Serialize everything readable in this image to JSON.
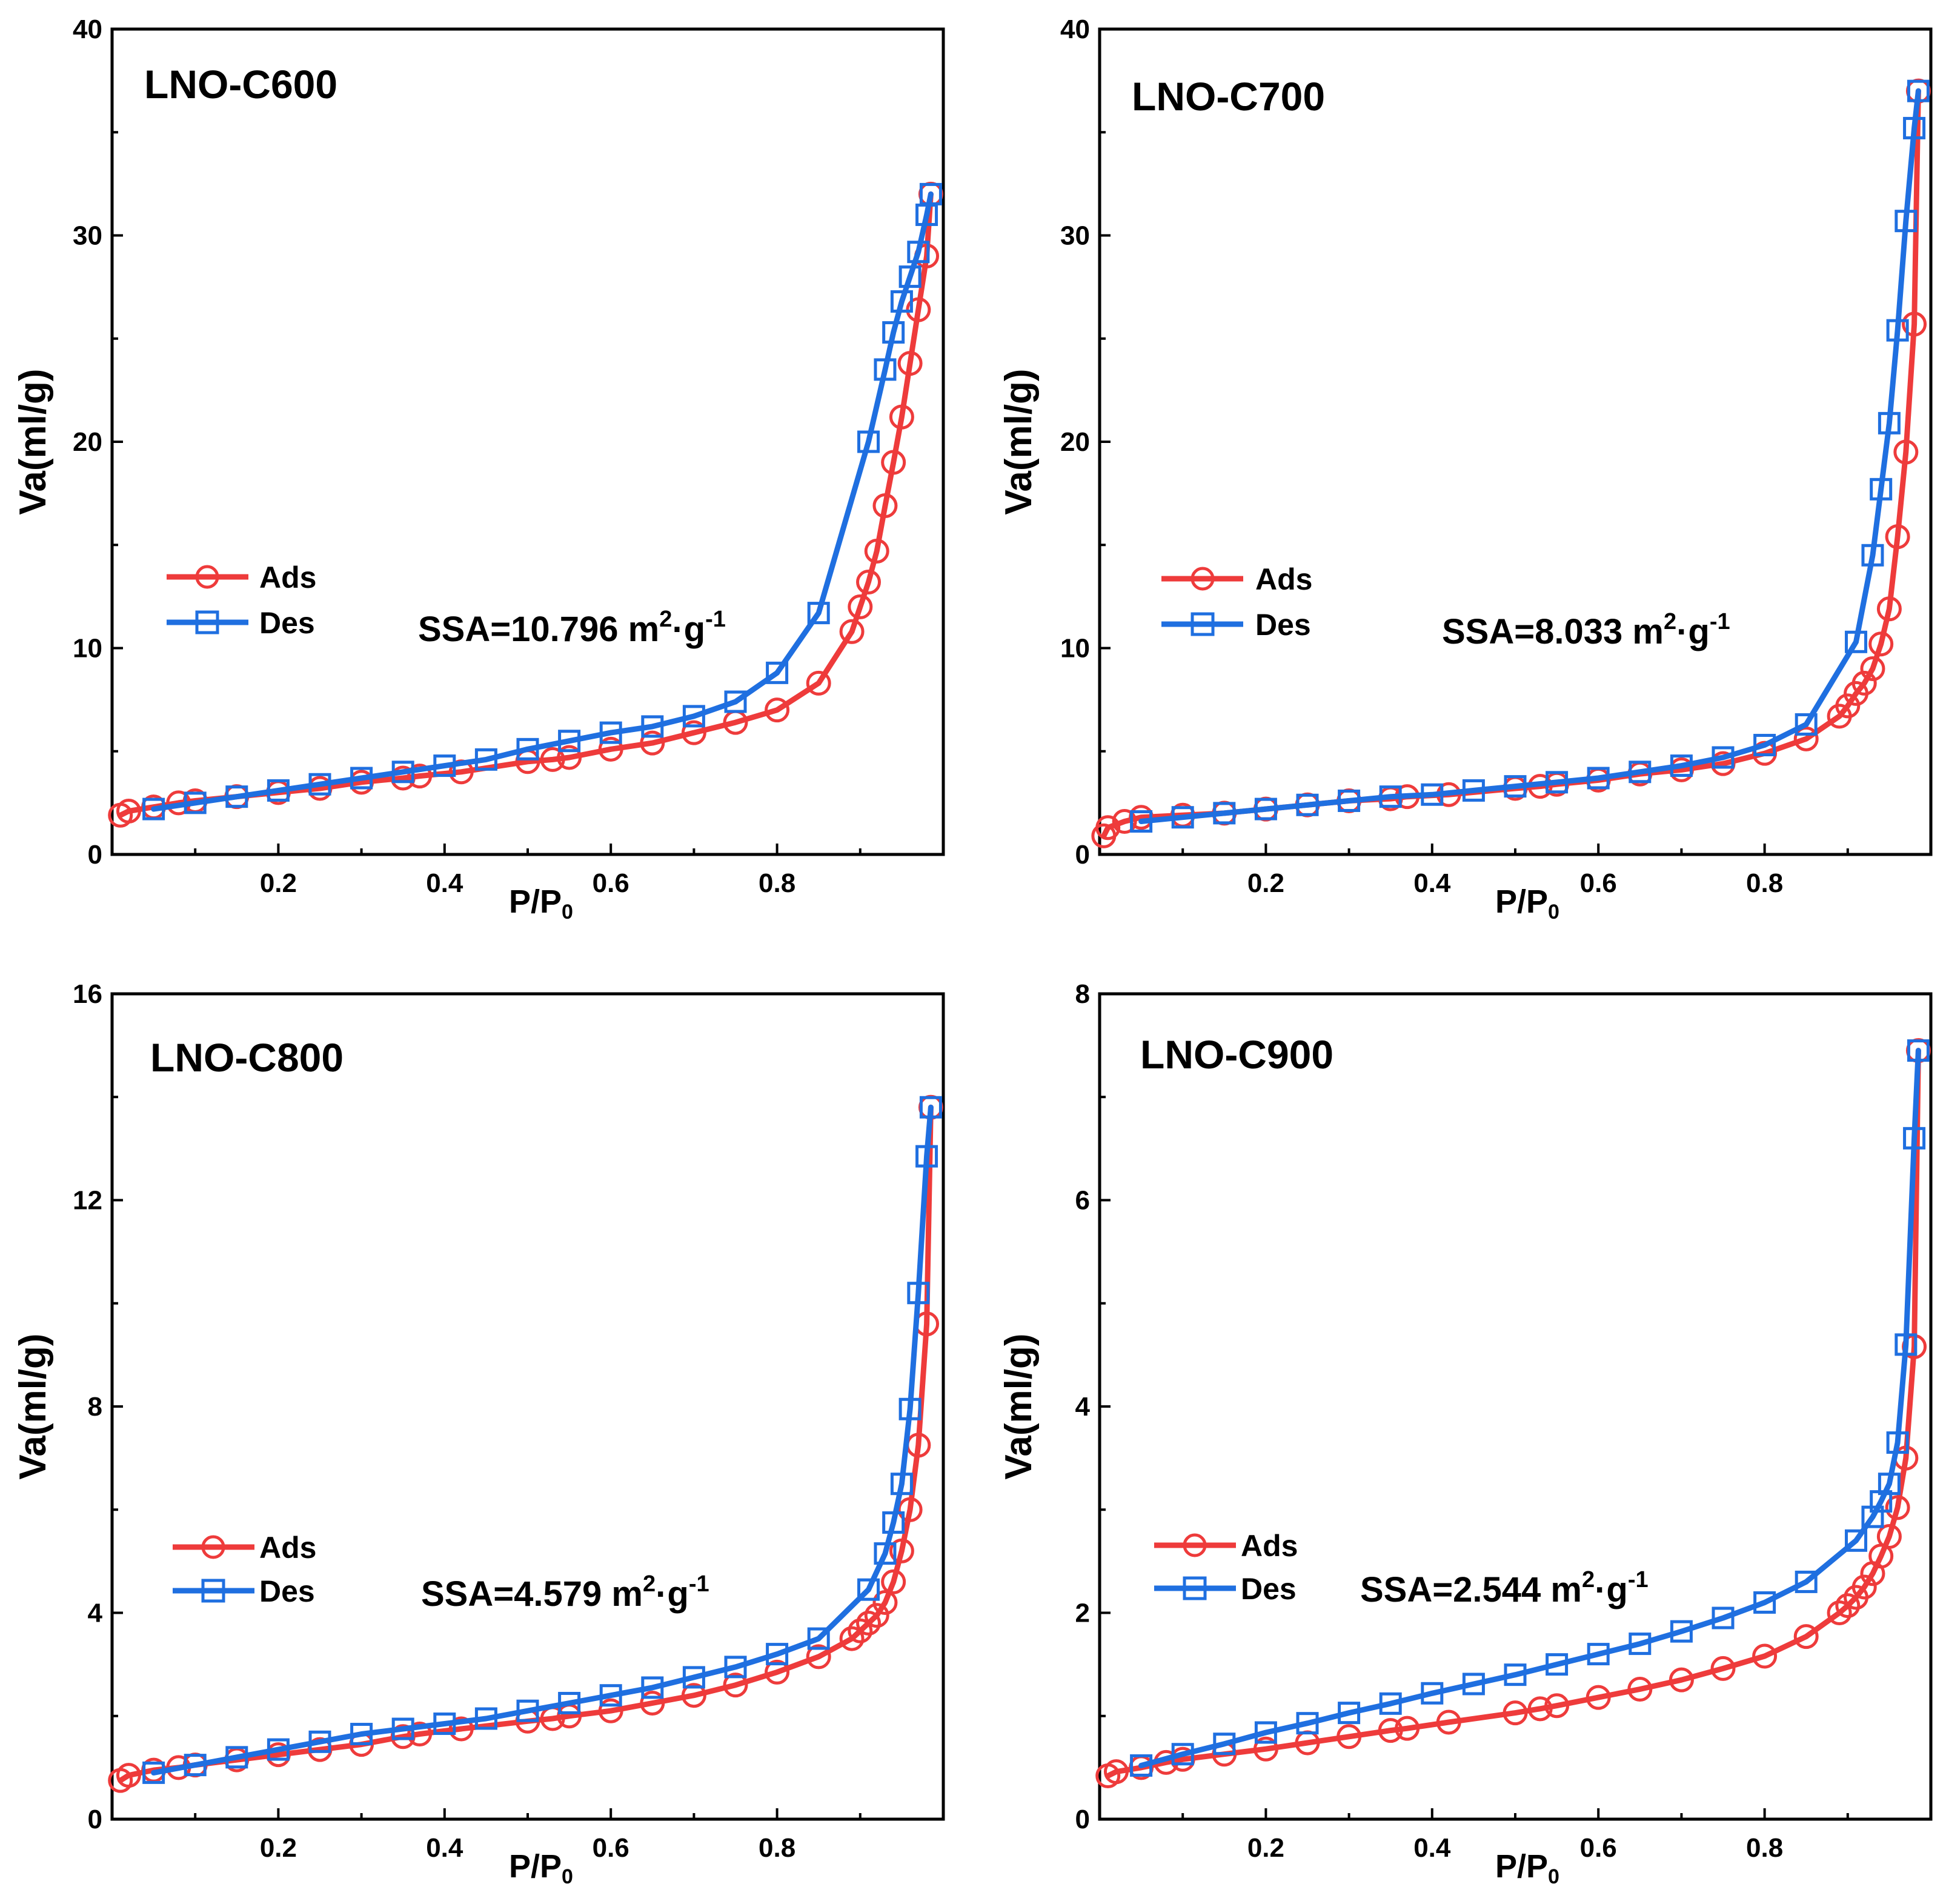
{
  "figure": {
    "type": "multi-panel isotherm figure",
    "colors": {
      "ads": "#ee3b3b",
      "des": "#1f6fe0"
    }
  },
  "chart_data": [
    {
      "type": "line",
      "title": "LNO-C600",
      "xlabel_main": "P/P",
      "xlabel_sub": "0",
      "ylabel": "Va(ml/g)",
      "xlim": [
        0.0,
        1.0
      ],
      "ylim": [
        0,
        40
      ],
      "xticks": [
        "0.2",
        "0.4",
        "0.6",
        "0.8"
      ],
      "yticks": [
        "0",
        "10",
        "20",
        "30",
        "40"
      ],
      "annotation": {
        "text": "SSA=10.796 m",
        "sup1": "2",
        "mid": "·g",
        "sup2": "-1"
      },
      "legend": [
        "Ads",
        "Des"
      ],
      "series": [
        {
          "name": "Ads",
          "marker": "circle",
          "x": [
            0.01,
            0.02,
            0.05,
            0.08,
            0.1,
            0.15,
            0.2,
            0.25,
            0.3,
            0.35,
            0.37,
            0.42,
            0.5,
            0.53,
            0.55,
            0.6,
            0.65,
            0.7,
            0.75,
            0.8,
            0.85,
            0.89,
            0.9,
            0.91,
            0.92,
            0.93,
            0.94,
            0.95,
            0.96,
            0.97,
            0.98,
            0.985
          ],
          "y": [
            1.9,
            2.1,
            2.3,
            2.5,
            2.6,
            2.8,
            3.0,
            3.2,
            3.5,
            3.7,
            3.8,
            4.0,
            4.5,
            4.6,
            4.7,
            5.1,
            5.4,
            5.9,
            6.4,
            7.0,
            8.3,
            10.8,
            12.0,
            13.2,
            14.7,
            16.9,
            19.0,
            21.2,
            23.8,
            26.4,
            29.0,
            32.0
          ]
        },
        {
          "name": "Des",
          "marker": "square",
          "x": [
            0.985,
            0.98,
            0.97,
            0.96,
            0.95,
            0.94,
            0.93,
            0.91,
            0.85,
            0.8,
            0.75,
            0.7,
            0.65,
            0.6,
            0.55,
            0.5,
            0.45,
            0.4,
            0.35,
            0.3,
            0.25,
            0.2,
            0.15,
            0.1,
            0.05
          ],
          "y": [
            32.0,
            31.0,
            29.2,
            28.0,
            26.8,
            25.3,
            23.5,
            20.0,
            11.7,
            8.8,
            7.4,
            6.7,
            6.2,
            5.9,
            5.5,
            5.1,
            4.6,
            4.3,
            4.0,
            3.7,
            3.4,
            3.1,
            2.8,
            2.5,
            2.2
          ]
        }
      ]
    },
    {
      "type": "line",
      "title": "LNO-C700",
      "xlabel_main": "P/P",
      "xlabel_sub": "0",
      "ylabel": "Va(ml/g)",
      "xlim": [
        0.0,
        1.0
      ],
      "ylim": [
        0,
        40
      ],
      "xticks": [
        "0.2",
        "0.4",
        "0.6",
        "0.8"
      ],
      "yticks": [
        "0",
        "10",
        "20",
        "30",
        "40"
      ],
      "annotation": {
        "text": "SSA=8.033 m",
        "sup1": "2",
        "mid": "·g",
        "sup2": "-1"
      },
      "legend": [
        "Ads",
        "Des"
      ],
      "series": [
        {
          "name": "Ads",
          "marker": "circle",
          "x": [
            0.005,
            0.01,
            0.03,
            0.05,
            0.1,
            0.15,
            0.2,
            0.25,
            0.3,
            0.35,
            0.37,
            0.42,
            0.5,
            0.53,
            0.55,
            0.6,
            0.65,
            0.7,
            0.75,
            0.8,
            0.85,
            0.89,
            0.9,
            0.91,
            0.92,
            0.93,
            0.94,
            0.95,
            0.96,
            0.97,
            0.98,
            0.985
          ],
          "y": [
            0.9,
            1.3,
            1.6,
            1.8,
            1.9,
            2.0,
            2.2,
            2.4,
            2.6,
            2.7,
            2.8,
            2.9,
            3.2,
            3.3,
            3.4,
            3.6,
            3.9,
            4.1,
            4.4,
            4.9,
            5.6,
            6.7,
            7.2,
            7.8,
            8.3,
            9.0,
            10.2,
            11.9,
            15.4,
            19.5,
            25.7,
            37.0
          ]
        },
        {
          "name": "Des",
          "marker": "square",
          "x": [
            0.985,
            0.98,
            0.97,
            0.96,
            0.95,
            0.94,
            0.93,
            0.91,
            0.85,
            0.8,
            0.75,
            0.7,
            0.65,
            0.6,
            0.55,
            0.5,
            0.45,
            0.4,
            0.35,
            0.3,
            0.25,
            0.2,
            0.15,
            0.1,
            0.05
          ],
          "y": [
            37.0,
            35.2,
            30.7,
            25.4,
            20.9,
            17.7,
            14.5,
            10.3,
            6.3,
            5.3,
            4.7,
            4.3,
            4.0,
            3.7,
            3.5,
            3.3,
            3.1,
            2.9,
            2.8,
            2.6,
            2.4,
            2.2,
            2.0,
            1.8,
            1.6
          ]
        }
      ]
    },
    {
      "type": "line",
      "title": "LNO-C800",
      "xlabel_main": "P/P",
      "xlabel_sub": "0",
      "ylabel": "Va(ml/g)",
      "xlim": [
        0.0,
        1.0
      ],
      "ylim": [
        0,
        16
      ],
      "xticks": [
        "0.2",
        "0.4",
        "0.6",
        "0.8"
      ],
      "yticks": [
        "0",
        "4",
        "8",
        "12",
        "16"
      ],
      "annotation": {
        "text": "SSA=4.579 m",
        "sup1": "2",
        "mid": "·g",
        "sup2": "-1"
      },
      "legend": [
        "Ads",
        "Des"
      ],
      "series": [
        {
          "name": "Ads",
          "marker": "circle",
          "x": [
            0.01,
            0.02,
            0.05,
            0.08,
            0.1,
            0.15,
            0.2,
            0.25,
            0.3,
            0.35,
            0.37,
            0.42,
            0.5,
            0.53,
            0.55,
            0.6,
            0.65,
            0.7,
            0.75,
            0.8,
            0.85,
            0.89,
            0.9,
            0.91,
            0.92,
            0.93,
            0.94,
            0.95,
            0.96,
            0.97,
            0.98,
            0.985
          ],
          "y": [
            0.75,
            0.85,
            0.95,
            1.0,
            1.05,
            1.15,
            1.25,
            1.35,
            1.45,
            1.6,
            1.65,
            1.75,
            1.9,
            1.95,
            2.0,
            2.1,
            2.25,
            2.4,
            2.6,
            2.85,
            3.15,
            3.5,
            3.65,
            3.8,
            3.95,
            4.2,
            4.6,
            5.2,
            6.0,
            7.25,
            9.6,
            13.8
          ]
        },
        {
          "name": "Des",
          "marker": "square",
          "x": [
            0.985,
            0.98,
            0.97,
            0.96,
            0.95,
            0.94,
            0.93,
            0.91,
            0.85,
            0.8,
            0.75,
            0.7,
            0.65,
            0.6,
            0.55,
            0.5,
            0.45,
            0.4,
            0.35,
            0.3,
            0.25,
            0.2,
            0.15,
            0.1,
            0.05
          ],
          "y": [
            13.8,
            12.85,
            10.2,
            7.95,
            6.5,
            5.75,
            5.15,
            4.45,
            3.5,
            3.2,
            2.95,
            2.75,
            2.55,
            2.4,
            2.25,
            2.1,
            1.95,
            1.85,
            1.75,
            1.65,
            1.5,
            1.35,
            1.2,
            1.05,
            0.9
          ]
        }
      ]
    },
    {
      "type": "line",
      "title": "LNO-C900",
      "xlabel_main": "P/P",
      "xlabel_sub": "0",
      "ylabel": "Va(ml/g)",
      "xlim": [
        0.0,
        1.0
      ],
      "ylim": [
        0,
        8
      ],
      "xticks": [
        "0.2",
        "0.4",
        "0.6",
        "0.8"
      ],
      "yticks": [
        "0",
        "2",
        "4",
        "6",
        "8"
      ],
      "annotation": {
        "text": "SSA=2.544 m",
        "sup1": "2",
        "mid": "·g",
        "sup2": "-1"
      },
      "legend": [
        "Ads",
        "Des"
      ],
      "series": [
        {
          "name": "Ads",
          "marker": "circle",
          "x": [
            0.01,
            0.02,
            0.05,
            0.08,
            0.1,
            0.15,
            0.2,
            0.25,
            0.3,
            0.35,
            0.37,
            0.42,
            0.5,
            0.53,
            0.55,
            0.6,
            0.65,
            0.7,
            0.75,
            0.8,
            0.85,
            0.89,
            0.9,
            0.91,
            0.92,
            0.93,
            0.94,
            0.95,
            0.96,
            0.97,
            0.98,
            0.985
          ],
          "y": [
            0.42,
            0.46,
            0.5,
            0.55,
            0.58,
            0.63,
            0.68,
            0.74,
            0.8,
            0.86,
            0.88,
            0.94,
            1.03,
            1.07,
            1.1,
            1.18,
            1.26,
            1.35,
            1.46,
            1.58,
            1.77,
            2.0,
            2.07,
            2.15,
            2.25,
            2.38,
            2.55,
            2.74,
            3.02,
            3.5,
            4.58,
            7.45
          ]
        },
        {
          "name": "Des",
          "marker": "square",
          "x": [
            0.985,
            0.98,
            0.97,
            0.96,
            0.95,
            0.94,
            0.93,
            0.91,
            0.85,
            0.8,
            0.75,
            0.7,
            0.65,
            0.6,
            0.55,
            0.5,
            0.45,
            0.4,
            0.35,
            0.3,
            0.25,
            0.2,
            0.15,
            0.1,
            0.05
          ],
          "y": [
            7.45,
            6.6,
            4.6,
            3.65,
            3.25,
            3.08,
            2.93,
            2.7,
            2.3,
            2.1,
            1.95,
            1.82,
            1.7,
            1.6,
            1.5,
            1.4,
            1.31,
            1.22,
            1.12,
            1.03,
            0.93,
            0.84,
            0.73,
            0.63,
            0.52
          ]
        }
      ]
    }
  ]
}
